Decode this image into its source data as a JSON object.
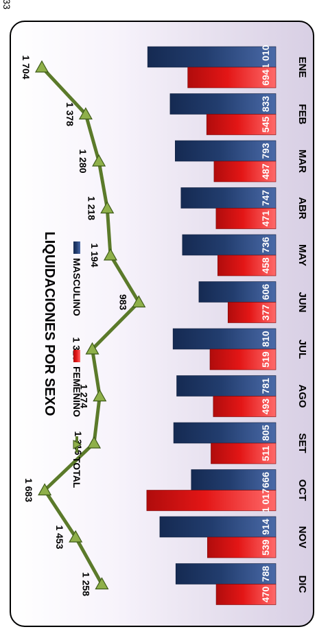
{
  "page_number": "33",
  "chart_data": {
    "type": "bar",
    "title": "LIQUIDACIONES POR SEXO",
    "categories": [
      "ENE",
      "FEB",
      "MAR",
      "ABR",
      "MAY",
      "JUN",
      "JUL",
      "AGO",
      "SET",
      "OCT",
      "NOV",
      "DIC"
    ],
    "series": [
      {
        "name": "MASCULINO",
        "values": [
          1010,
          833,
          793,
          747,
          736,
          606,
          810,
          781,
          805,
          666,
          914,
          788
        ],
        "labels": [
          "1 010",
          "833",
          "793",
          "747",
          "736",
          "606",
          "810",
          "781",
          "805",
          "666",
          "914",
          "788"
        ],
        "color": "#1f3a6b"
      },
      {
        "name": "FEMENINO",
        "values": [
          694,
          545,
          487,
          471,
          458,
          377,
          519,
          493,
          511,
          1017,
          539,
          470
        ],
        "labels": [
          "694",
          "545",
          "487",
          "471",
          "458",
          "377",
          "519",
          "493",
          "511",
          "1 017",
          "539",
          "470"
        ],
        "color": "#e01414"
      },
      {
        "name": "TOTAL",
        "type": "line",
        "values": [
          1704,
          1378,
          1280,
          1218,
          1194,
          983,
          1329,
          1274,
          1316,
          1683,
          1453,
          1258
        ],
        "labels": [
          "1 704",
          "1 378",
          "1 280",
          "1 218",
          "1 194",
          "983",
          "1 329",
          "1 274",
          "1 316",
          "1 683",
          "1 453",
          "1 258"
        ],
        "color": "#5b7a2a"
      }
    ],
    "orientation": "rotated 90° clockwise",
    "legend_position": "bottom"
  }
}
